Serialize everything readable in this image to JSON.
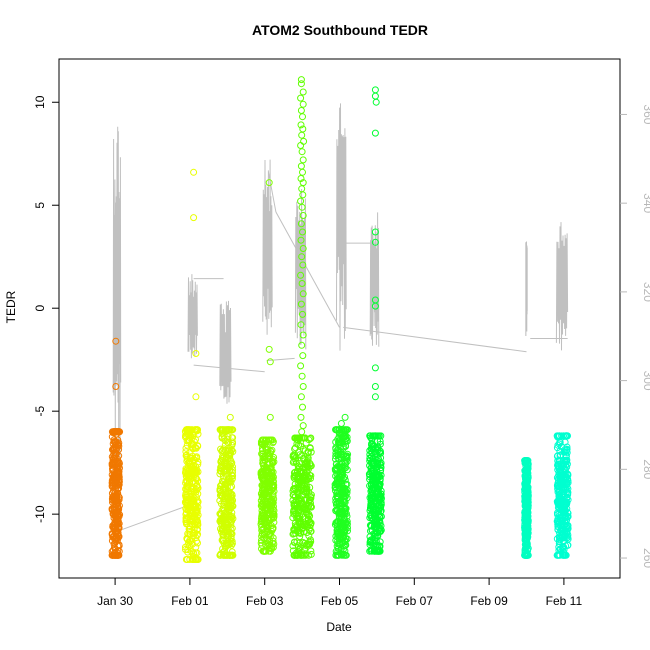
{
  "chart_data": {
    "type": "scatter",
    "title": "ATOM2 Southbound TEDR",
    "xlabel": "Date",
    "ylabel": "TEDR",
    "x_ticks": [
      "Jan 30",
      "Feb 01",
      "Feb 03",
      "Feb 05",
      "Feb 07",
      "Feb 09",
      "Feb 11"
    ],
    "x_tick_days": [
      1,
      3,
      5,
      7,
      9,
      11,
      13
    ],
    "xlim_days": [
      -0.5,
      14.5
    ],
    "y_ticks": [
      -10,
      -5,
      0,
      5,
      10
    ],
    "ylim": [
      -13.1,
      12.1
    ],
    "y2_ticks": [
      260,
      280,
      300,
      320,
      340,
      360
    ],
    "y2lim": [
      255.5,
      372.5
    ],
    "grid": false,
    "series": [
      {
        "color": "#f07800",
        "x_range": [
          0.92,
          1.12
        ],
        "y_range": [
          -12.0,
          -6.0
        ],
        "outliers": [
          [
            1.02,
            -1.6
          ],
          [
            1.02,
            -3.8
          ]
        ]
      },
      {
        "color": "#e8ff00",
        "x_range": [
          2.88,
          3.22
        ],
        "y_range": [
          -12.2,
          -5.9
        ],
        "outliers": [
          [
            3.1,
            6.6
          ],
          [
            3.1,
            4.4
          ],
          [
            3.16,
            -2.2
          ],
          [
            3.16,
            -4.3
          ]
        ]
      },
      {
        "color": "#d0ff00",
        "x_range": [
          3.8,
          4.15
        ],
        "y_range": [
          -12.0,
          -5.9
        ],
        "outliers": [
          [
            4.08,
            -5.3
          ]
        ]
      },
      {
        "color": "#80ff00",
        "x_range": [
          4.9,
          5.25
        ],
        "y_range": [
          -11.8,
          -6.4
        ],
        "outliers": [
          [
            5.15,
            -5.3
          ],
          [
            5.12,
            6.1
          ],
          [
            5.12,
            -2.0
          ],
          [
            5.15,
            -2.6
          ]
        ]
      },
      {
        "color": "#60ff00",
        "x_range": [
          5.75,
          6.25
        ],
        "y_range": [
          -12.0,
          -6.3
        ],
        "outliers": [
          [
            5.98,
            11.1
          ],
          [
            5.98,
            10.9
          ],
          [
            6.03,
            10.5
          ],
          [
            5.96,
            10.2
          ],
          [
            6.03,
            9.9
          ],
          [
            5.98,
            9.6
          ],
          [
            6.01,
            9.3
          ],
          [
            5.97,
            8.9
          ],
          [
            6.02,
            8.7
          ],
          [
            5.99,
            8.4
          ],
          [
            6.04,
            8.1
          ],
          [
            5.96,
            7.9
          ],
          [
            6.0,
            7.6
          ],
          [
            6.03,
            7.2
          ],
          [
            5.98,
            6.9
          ],
          [
            6.01,
            6.6
          ],
          [
            5.97,
            6.3
          ],
          [
            6.03,
            6.1
          ],
          [
            5.99,
            5.8
          ],
          [
            6.02,
            5.5
          ],
          [
            5.96,
            5.2
          ],
          [
            6.0,
            4.9
          ],
          [
            6.03,
            4.5
          ],
          [
            5.98,
            4.1
          ],
          [
            6.01,
            3.7
          ],
          [
            5.97,
            3.3
          ],
          [
            6.03,
            2.9
          ],
          [
            5.99,
            2.5
          ],
          [
            6.02,
            2.1
          ],
          [
            5.96,
            1.6
          ],
          [
            6.0,
            1.2
          ],
          [
            6.03,
            0.7
          ],
          [
            5.98,
            0.2
          ],
          [
            6.01,
            -0.3
          ],
          [
            5.97,
            -0.8
          ],
          [
            6.03,
            -1.3
          ],
          [
            5.99,
            -1.8
          ],
          [
            6.02,
            -2.3
          ],
          [
            5.96,
            -2.8
          ],
          [
            6.0,
            -3.3
          ],
          [
            6.03,
            -3.8
          ],
          [
            5.98,
            -4.3
          ],
          [
            6.01,
            -4.8
          ],
          [
            5.97,
            -5.3
          ],
          [
            6.03,
            -5.7
          ],
          [
            5.99,
            -6.0
          ]
        ]
      },
      {
        "color": "#20ff20",
        "x_range": [
          6.88,
          7.22
        ],
        "y_range": [
          -12.0,
          -5.9
        ],
        "outliers": [
          [
            7.05,
            -5.6
          ],
          [
            7.15,
            -5.3
          ]
        ]
      },
      {
        "color": "#00ff30",
        "x_range": [
          7.8,
          8.12
        ],
        "y_range": [
          -11.8,
          -6.2
        ],
        "outliers": [
          [
            7.96,
            10.6
          ],
          [
            7.96,
            10.3
          ],
          [
            7.98,
            10.0
          ],
          [
            7.96,
            8.5
          ],
          [
            7.96,
            3.7
          ],
          [
            7.96,
            3.2
          ],
          [
            7.96,
            0.4
          ],
          [
            7.96,
            0.1
          ],
          [
            7.96,
            -2.9
          ],
          [
            7.96,
            -3.8
          ],
          [
            7.96,
            -4.3
          ]
        ]
      },
      {
        "color": "#00ffc0",
        "x_range": [
          11.95,
          12.05
        ],
        "y_range": [
          -12.0,
          -7.4
        ],
        "outliers": []
      },
      {
        "color": "#00ffd0",
        "x_range": [
          12.82,
          13.12
        ],
        "y_range": [
          -12.0,
          -6.2
        ],
        "outliers": []
      }
    ],
    "line_series": {
      "color": "#c0c0c0",
      "axis": "right",
      "flat_segments": [
        [
          1.05,
          3.0,
          266.0,
          272.0
        ],
        [
          3.1,
          3.9,
          323.0,
          323.0
        ],
        [
          3.1,
          5.0,
          303.5,
          302.0
        ],
        [
          5.05,
          5.8,
          304.5,
          305.0
        ],
        [
          5.1,
          5.3,
          347.0,
          338.0
        ],
        [
          5.3,
          7.0,
          338.0,
          312.0
        ],
        [
          7.05,
          8.0,
          331.0,
          331.0
        ],
        [
          7.1,
          12.0,
          312.0,
          306.5
        ],
        [
          12.1,
          13.1,
          309.5,
          309.5
        ]
      ],
      "spikes": [
        [
          0.95,
          1.15,
          263.0,
          362.0
        ],
        [
          2.95,
          3.2,
          300.0,
          325.0
        ],
        [
          3.8,
          4.1,
          288.0,
          318.0
        ],
        [
          4.95,
          5.2,
          298.0,
          350.0
        ],
        [
          5.82,
          6.1,
          300.0,
          346.0
        ],
        [
          6.92,
          7.18,
          296.0,
          367.0
        ],
        [
          7.82,
          8.05,
          301.0,
          338.0
        ],
        [
          11.98,
          12.02,
          305.0,
          332.0
        ],
        [
          12.8,
          13.1,
          300.0,
          336.0
        ]
      ]
    }
  }
}
